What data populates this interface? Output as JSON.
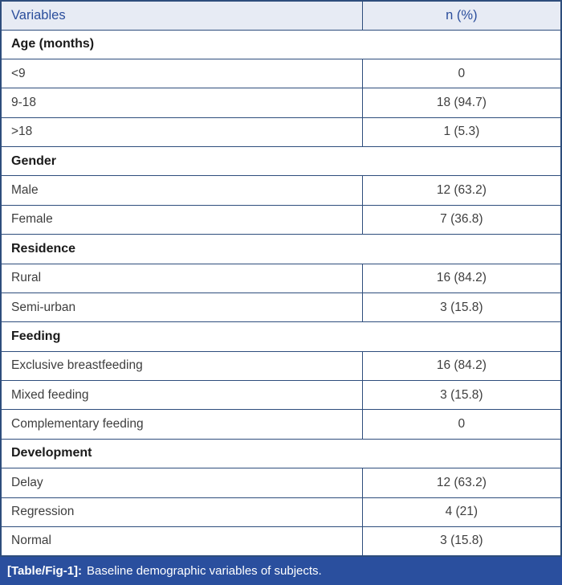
{
  "table": {
    "columns": [
      {
        "label": "Variables"
      },
      {
        "label": "n (%)"
      }
    ],
    "sections": [
      {
        "label": "Age (months)",
        "rows": [
          {
            "variable": "<9",
            "value": "0"
          },
          {
            "variable": "9-18",
            "value": "18 (94.7)"
          },
          {
            "variable": ">18",
            "value": "1 (5.3)"
          }
        ]
      },
      {
        "label": "Gender",
        "rows": [
          {
            "variable": "Male",
            "value": "12 (63.2)"
          },
          {
            "variable": "Female",
            "value": "7 (36.8)"
          }
        ]
      },
      {
        "label": "Residence",
        "rows": [
          {
            "variable": "Rural",
            "value": "16 (84.2)"
          },
          {
            "variable": "Semi-urban",
            "value": "3 (15.8)"
          }
        ]
      },
      {
        "label": "Feeding",
        "rows": [
          {
            "variable": "Exclusive breastfeeding",
            "value": "16 (84.2)"
          },
          {
            "variable": "Mixed feeding",
            "value": "3 (15.8)"
          },
          {
            "variable": "Complementary feeding",
            "value": "0"
          }
        ]
      },
      {
        "label": "Development",
        "rows": [
          {
            "variable": "Delay",
            "value": "12 (63.2)"
          },
          {
            "variable": "Regression",
            "value": "4 (21)"
          },
          {
            "variable": "Normal",
            "value": "3 (15.8)"
          }
        ]
      }
    ],
    "caption": {
      "tag": "[Table/Fig-1]:",
      "text": "Baseline demographic variables of subjects."
    }
  },
  "colors": {
    "border": "#2e4d7c",
    "header_bg": "#e7ebf4",
    "header_text": "#2b4e9c",
    "caption_bg": "#2a4f9e",
    "caption_text": "#ffffff",
    "body_text": "#3e3e3e",
    "section_text": "#1a1a1a"
  }
}
